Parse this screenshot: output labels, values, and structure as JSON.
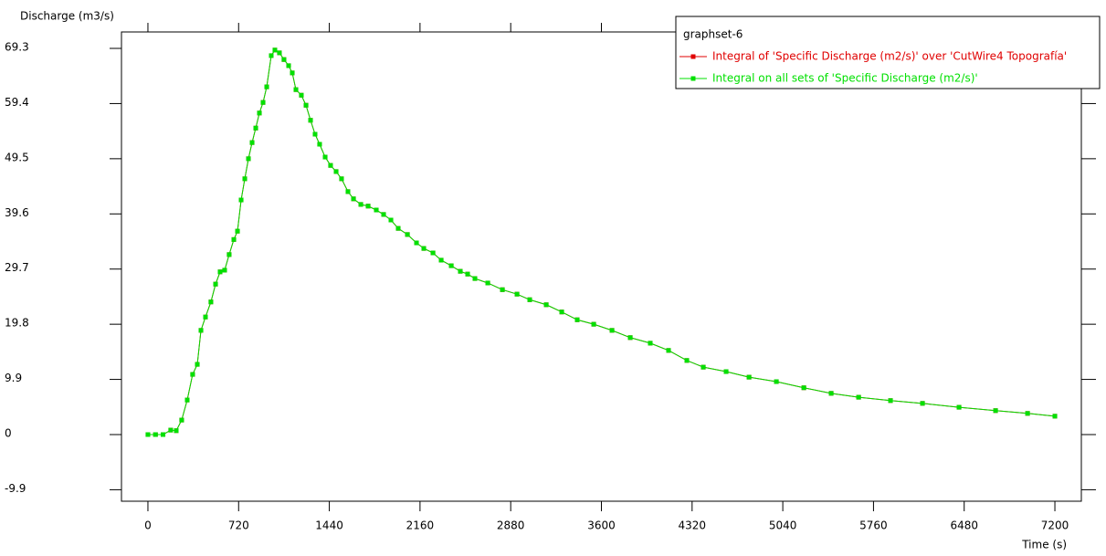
{
  "chart_data": {
    "type": "line",
    "x_label": "Time (s)",
    "y_label": "Discharge (m3/s)",
    "legend_title": "graphset-6",
    "legend": "top-right",
    "x": [
      0,
      60,
      120,
      181,
      225,
      268,
      312,
      355,
      392,
      421,
      457,
      500,
      537,
      573,
      609,
      645,
      682,
      711,
      740,
      769,
      798,
      827,
      856,
      885,
      914,
      943,
      979,
      1008,
      1044,
      1080,
      1117,
      1146,
      1175,
      1218,
      1255,
      1291,
      1327,
      1363,
      1407,
      1450,
      1494,
      1537,
      1588,
      1632,
      1690,
      1748,
      1813,
      1871,
      1929,
      1987,
      2060,
      2132,
      2190,
      2263,
      2328,
      2408,
      2480,
      2538,
      2596,
      2698,
      2814,
      2930,
      3031,
      3162,
      3285,
      3408,
      3539,
      3684,
      3829,
      3988,
      4133,
      4278,
      4409,
      4590,
      4772,
      4989,
      5207,
      5424,
      5642,
      5895,
      6149,
      6439,
      6729,
      6983,
      7200
    ],
    "series": [
      {
        "name": "Integral of 'Specific Discharge (m2/s)' over 'CutWire4 Topografía'",
        "color": "#e00000",
        "values": [
          0,
          0,
          0,
          0.8,
          0.7,
          2.6,
          6.2,
          10.8,
          12.6,
          18.7,
          21.1,
          23.8,
          27,
          29.2,
          29.5,
          32.3,
          35,
          36.5,
          42.1,
          45.9,
          49.5,
          52.4,
          55,
          57.7,
          59.6,
          62.4,
          68,
          69,
          68.5,
          67.3,
          66.2,
          64.9,
          61.9,
          60.9,
          59.1,
          56.4,
          53.9,
          52.1,
          49.8,
          48.3,
          47.2,
          45.9,
          43.6,
          42.3,
          41.3,
          41,
          40.3,
          39.5,
          38.5,
          37,
          35.9,
          34.4,
          33.4,
          32.6,
          31.3,
          30.3,
          29.3,
          28.8,
          28,
          27.2,
          26,
          25.2,
          24.2,
          23.3,
          22,
          20.6,
          19.8,
          18.7,
          17.4,
          16.4,
          15.1,
          13.3,
          12.1,
          11.3,
          10.3,
          9.5,
          8.4,
          7.4,
          6.7,
          6.1,
          5.6,
          4.9,
          4.3,
          3.8,
          3.3
        ]
      },
      {
        "name": "Integral on all sets of 'Specific Discharge (m2/s)'",
        "color": "#00e000",
        "values": [
          0,
          0,
          0,
          0.8,
          0.7,
          2.6,
          6.2,
          10.8,
          12.6,
          18.7,
          21.1,
          23.8,
          27,
          29.2,
          29.5,
          32.3,
          35,
          36.5,
          42.1,
          45.9,
          49.5,
          52.4,
          55,
          57.7,
          59.6,
          62.4,
          68,
          69,
          68.5,
          67.3,
          66.2,
          64.9,
          61.9,
          60.9,
          59.1,
          56.4,
          53.9,
          52.1,
          49.8,
          48.3,
          47.2,
          45.9,
          43.6,
          42.3,
          41.3,
          41,
          40.3,
          39.5,
          38.5,
          37,
          35.9,
          34.4,
          33.4,
          32.6,
          31.3,
          30.3,
          29.3,
          28.8,
          28,
          27.2,
          26,
          25.2,
          24.2,
          23.3,
          22,
          20.6,
          19.8,
          18.7,
          17.4,
          16.4,
          15.1,
          13.3,
          12.1,
          11.3,
          10.3,
          9.5,
          8.4,
          7.4,
          6.7,
          6.1,
          5.6,
          4.9,
          4.3,
          3.8,
          3.3
        ]
      }
    ],
    "xlim": [
      -210,
      7410
    ],
    "ylim": [
      -11.96,
      72.25
    ],
    "xticks": [
      0,
      720,
      1440,
      2160,
      2880,
      3600,
      4320,
      5040,
      5760,
      6480,
      7200
    ],
    "yticks": [
      -9.9,
      0,
      9.9,
      19.8,
      29.7,
      39.6,
      49.5,
      59.4,
      69.3
    ],
    "grid": false
  }
}
